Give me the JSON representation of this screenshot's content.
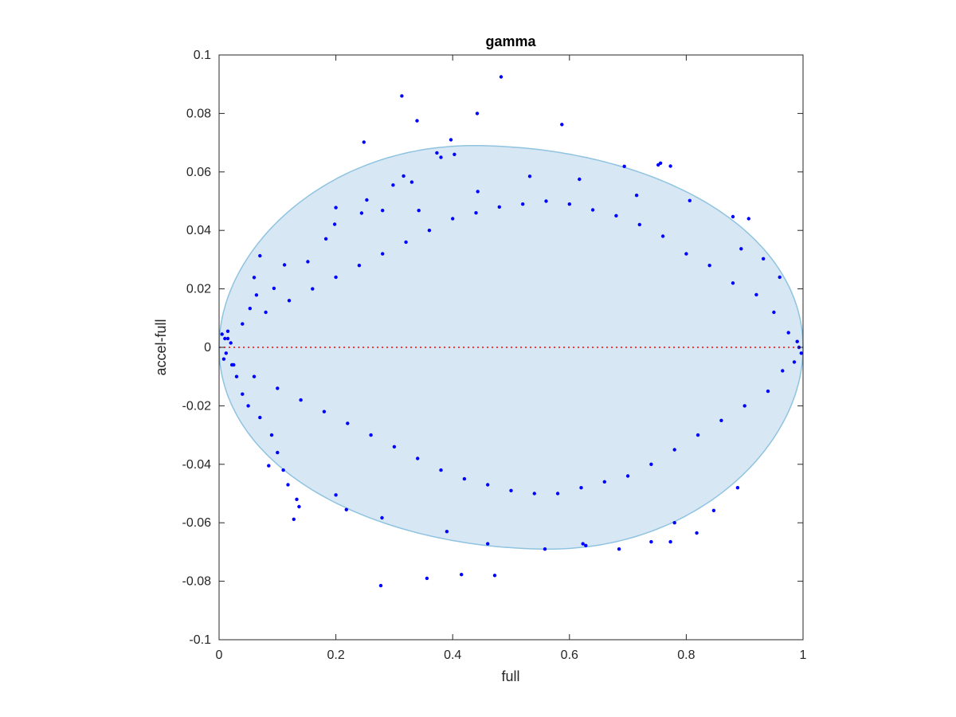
{
  "chart_data": {
    "type": "scatter",
    "title": "gamma",
    "xlabel": "full",
    "ylabel": "accel-full",
    "xlim": [
      0,
      1
    ],
    "ylim": [
      -0.1,
      0.1
    ],
    "xticks": [
      "0",
      "0.2",
      "0.4",
      "0.6",
      "0.8",
      "1"
    ],
    "yticks": [
      "-0.1",
      "-0.08",
      "-0.06",
      "-0.04",
      "-0.02",
      "0",
      "0.02",
      "0.04",
      "0.06",
      "0.08",
      "0.1"
    ],
    "grid": false,
    "legend": "none",
    "colors": {
      "points": "#0000ff",
      "ellipse_fill": "#d7e8f4",
      "ellipse_edge": "#8fc3e0",
      "zero_line": "#ff0000",
      "axes": "#262626"
    },
    "reference_line": {
      "y": 0,
      "style": "dotted"
    },
    "ellipse": {
      "center": [
        0.5,
        0
      ],
      "semi_axis_x": 0.5,
      "semi_axis_y": 0.069,
      "tilt_shift_x": -0.065
    },
    "series": [
      {
        "points": [
          [
            0.483,
            0.0925
          ],
          [
            0.313,
            0.086
          ],
          [
            0.587,
            0.0762
          ],
          [
            0.442,
            0.08
          ],
          [
            0.339,
            0.0775
          ],
          [
            0.397,
            0.071
          ],
          [
            0.248,
            0.0702
          ],
          [
            0.373,
            0.0665
          ],
          [
            0.38,
            0.065
          ],
          [
            0.403,
            0.066
          ],
          [
            0.773,
            0.062
          ],
          [
            0.752,
            0.0624
          ],
          [
            0.756,
            0.063
          ],
          [
            0.694,
            0.0619
          ],
          [
            0.316,
            0.0586
          ],
          [
            0.532,
            0.0585
          ],
          [
            0.33,
            0.0565
          ],
          [
            0.443,
            0.0533
          ],
          [
            0.298,
            0.0555
          ],
          [
            0.617,
            0.0575
          ],
          [
            0.806,
            0.0502
          ],
          [
            0.715,
            0.052
          ],
          [
            0.253,
            0.0504
          ],
          [
            0.2,
            0.0478
          ],
          [
            0.88,
            0.0447
          ],
          [
            0.907,
            0.044
          ],
          [
            0.244,
            0.0459
          ],
          [
            0.28,
            0.0468
          ],
          [
            0.342,
            0.0468
          ],
          [
            0.198,
            0.0421
          ],
          [
            0.183,
            0.0371
          ],
          [
            0.07,
            0.0313
          ],
          [
            0.894,
            0.0337
          ],
          [
            0.112,
            0.0282
          ],
          [
            0.094,
            0.0202
          ],
          [
            0.06,
            0.0239
          ],
          [
            0.064,
            0.0179
          ],
          [
            0.053,
            0.0133
          ],
          [
            0.152,
            0.0293
          ],
          [
            0.932,
            0.0303
          ],
          [
            0.96,
            0.024
          ],
          [
            0.005,
            0.0045
          ],
          [
            0.01,
            0.003
          ],
          [
            0.015,
            0.0055
          ],
          [
            0.02,
            0.0015
          ],
          [
            0.012,
            -0.002
          ],
          [
            0.008,
            -0.004
          ],
          [
            0.022,
            -0.006
          ],
          [
            0.03,
            -0.01
          ],
          [
            0.04,
            -0.016
          ],
          [
            0.05,
            -0.02
          ],
          [
            0.07,
            -0.024
          ],
          [
            0.09,
            -0.03
          ],
          [
            0.1,
            -0.036
          ],
          [
            0.085,
            -0.0405
          ],
          [
            0.11,
            -0.042
          ],
          [
            0.118,
            -0.047
          ],
          [
            0.133,
            -0.052
          ],
          [
            0.137,
            -0.0545
          ],
          [
            0.128,
            -0.0588
          ],
          [
            0.2,
            -0.0505
          ],
          [
            0.218,
            -0.0555
          ],
          [
            0.279,
            -0.0583
          ],
          [
            0.277,
            -0.0815
          ],
          [
            0.356,
            -0.079
          ],
          [
            0.415,
            -0.0777
          ],
          [
            0.472,
            -0.078
          ],
          [
            0.39,
            -0.063
          ],
          [
            0.46,
            -0.0672
          ],
          [
            0.558,
            -0.069
          ],
          [
            0.623,
            -0.0672
          ],
          [
            0.628,
            -0.0678
          ],
          [
            0.685,
            -0.069
          ],
          [
            0.74,
            -0.0665
          ],
          [
            0.773,
            -0.0665
          ],
          [
            0.818,
            -0.0635
          ],
          [
            0.78,
            -0.06
          ],
          [
            0.847,
            -0.0558
          ],
          [
            0.888,
            -0.048
          ],
          [
            0.993,
            0.0
          ],
          [
            0.997,
            -0.002
          ],
          [
            0.99,
            0.002
          ],
          [
            0.985,
            -0.005
          ],
          [
            0.975,
            0.005
          ],
          [
            0.965,
            -0.008
          ],
          [
            0.95,
            0.012
          ],
          [
            0.94,
            -0.015
          ],
          [
            0.92,
            0.018
          ],
          [
            0.9,
            -0.02
          ],
          [
            0.88,
            0.022
          ],
          [
            0.86,
            -0.025
          ],
          [
            0.84,
            0.028
          ],
          [
            0.82,
            -0.03
          ],
          [
            0.8,
            0.032
          ],
          [
            0.78,
            -0.035
          ],
          [
            0.76,
            0.038
          ],
          [
            0.74,
            -0.04
          ],
          [
            0.72,
            0.042
          ],
          [
            0.7,
            -0.044
          ],
          [
            0.68,
            0.045
          ],
          [
            0.66,
            -0.046
          ],
          [
            0.64,
            0.047
          ],
          [
            0.62,
            -0.048
          ],
          [
            0.6,
            0.049
          ],
          [
            0.58,
            -0.05
          ],
          [
            0.56,
            0.05
          ],
          [
            0.54,
            -0.05
          ],
          [
            0.52,
            0.049
          ],
          [
            0.5,
            -0.049
          ],
          [
            0.48,
            0.048
          ],
          [
            0.46,
            -0.047
          ],
          [
            0.44,
            0.046
          ],
          [
            0.42,
            -0.045
          ],
          [
            0.4,
            0.044
          ],
          [
            0.38,
            -0.042
          ],
          [
            0.36,
            0.04
          ],
          [
            0.34,
            -0.038
          ],
          [
            0.32,
            0.036
          ],
          [
            0.3,
            -0.034
          ],
          [
            0.28,
            0.032
          ],
          [
            0.26,
            -0.03
          ],
          [
            0.24,
            0.028
          ],
          [
            0.22,
            -0.026
          ],
          [
            0.2,
            0.024
          ],
          [
            0.18,
            -0.022
          ],
          [
            0.16,
            0.02
          ],
          [
            0.14,
            -0.018
          ],
          [
            0.12,
            0.016
          ],
          [
            0.1,
            -0.014
          ],
          [
            0.08,
            0.012
          ],
          [
            0.06,
            -0.01
          ],
          [
            0.04,
            0.008
          ],
          [
            0.025,
            -0.006
          ],
          [
            0.015,
            0.003
          ]
        ]
      }
    ]
  }
}
